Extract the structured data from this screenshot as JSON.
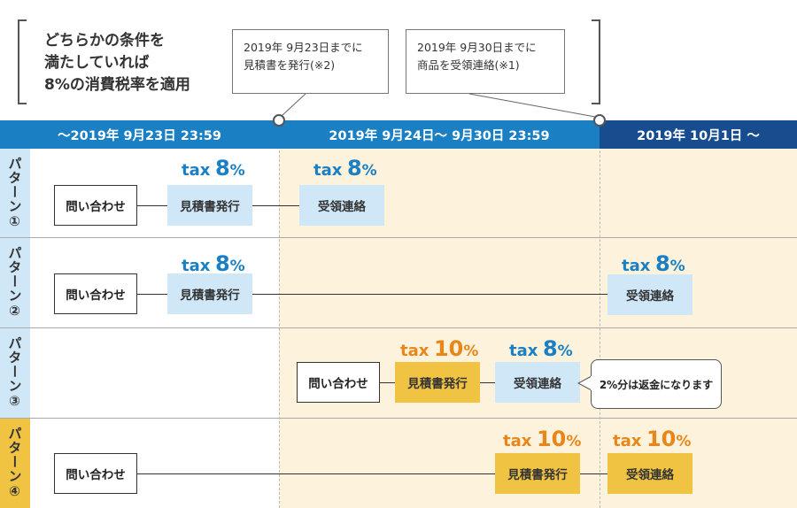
{
  "condition": {
    "line1": "どちらかの条件を",
    "line2": "満たしていれば",
    "line3": "8%の消費税率を適用"
  },
  "notes": [
    {
      "line1": "2019年 9月23日までに",
      "line2": "見積書を発行(※2)"
    },
    {
      "line1": "2019年 9月30日までに",
      "line2": "商品を受領連絡(※1)"
    }
  ],
  "timeline": {
    "period1": "～2019年 9月23日 23:59",
    "period2": "2019年 9月24日～ 9月30日 23:59",
    "period3": "2019年 10月1日 ～"
  },
  "patterns": [
    {
      "label": "パターン①",
      "inquiry": "問い合わせ",
      "estimate": "見積書発行",
      "estimate_tax": "8",
      "receipt": "受領連絡",
      "receipt_tax": "8"
    },
    {
      "label": "パターン②",
      "inquiry": "問い合わせ",
      "estimate": "見積書発行",
      "estimate_tax": "8",
      "receipt": "受領連絡",
      "receipt_tax": "8"
    },
    {
      "label": "パターン③",
      "inquiry": "問い合わせ",
      "estimate": "見積書発行",
      "estimate_tax": "10",
      "receipt": "受領連絡",
      "receipt_tax": "8",
      "callout": "2%分は返金になります"
    },
    {
      "label": "パターン④",
      "inquiry": "問い合わせ",
      "estimate": "見積書発行",
      "estimate_tax": "10",
      "receipt": "受領連絡",
      "receipt_tax": "10"
    }
  ],
  "tax_prefix": "tax",
  "percent": "%",
  "colors": {
    "blue": "#1b7fc3",
    "navy": "#174d8f",
    "orange": "#e8861a",
    "light_blue": "#cfe7f7",
    "yellow": "#f1c343",
    "cream": "#fdf3dc"
  }
}
